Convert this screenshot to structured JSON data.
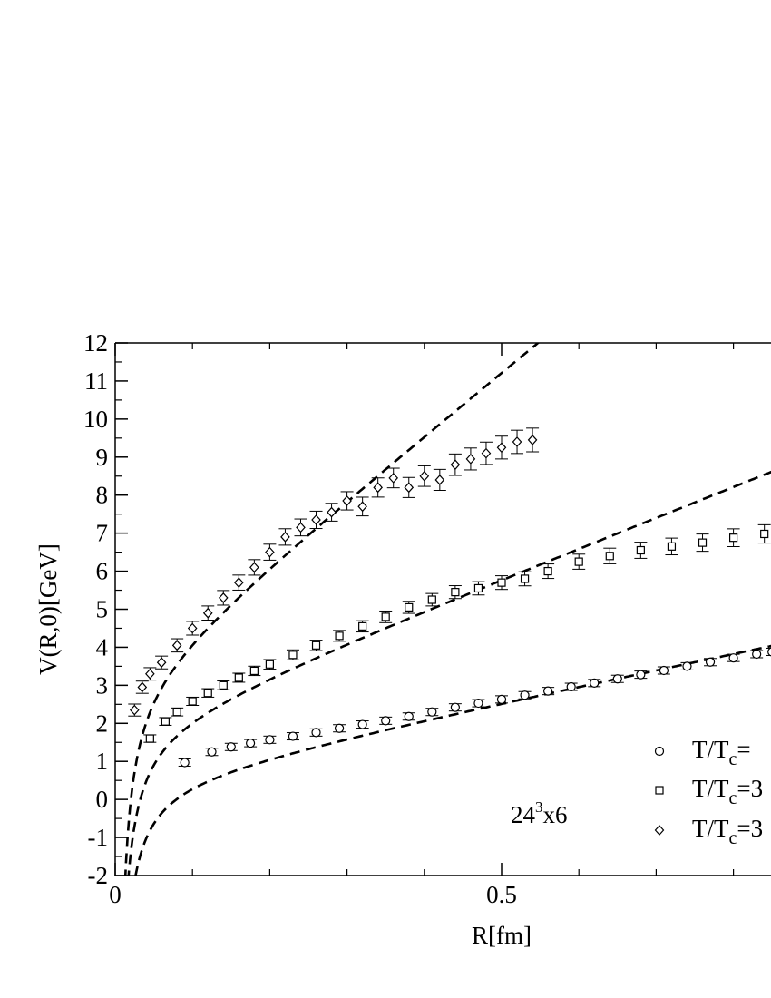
{
  "chart_data": {
    "type": "scatter",
    "title": "",
    "xlabel": "R[fm]",
    "ylabel": "V(R,0)[GeV]",
    "xlim": [
      0,
      0.86
    ],
    "ylim": [
      -2,
      12
    ],
    "xticks": [
      0,
      0.5
    ],
    "xtick_labels": [
      "0",
      "0.5"
    ],
    "yticks": [
      -2,
      -1,
      0,
      1,
      2,
      3,
      4,
      5,
      6,
      7,
      8,
      9,
      10,
      11,
      12
    ],
    "ytick_labels": [
      "-2",
      "-1",
      "0",
      "1",
      "2",
      "3",
      "4",
      "5",
      "6",
      "7",
      "8",
      "9",
      "10",
      "11",
      "12"
    ],
    "annotation": {
      "base": "24",
      "sup": "3",
      "rest": "x6"
    },
    "legend_placement": "bottom-right",
    "grid": false,
    "series": [
      {
        "name": "T/T_c=",
        "legend_main": "T/T",
        "legend_sub": "c",
        "legend_tail": "=",
        "marker": "circle",
        "points": [
          [
            0.09,
            0.97
          ],
          [
            0.125,
            1.25
          ],
          [
            0.15,
            1.38
          ],
          [
            0.175,
            1.48
          ],
          [
            0.2,
            1.57
          ],
          [
            0.23,
            1.66
          ],
          [
            0.26,
            1.76
          ],
          [
            0.29,
            1.87
          ],
          [
            0.32,
            1.97
          ],
          [
            0.35,
            2.07
          ],
          [
            0.38,
            2.18
          ],
          [
            0.41,
            2.3
          ],
          [
            0.44,
            2.42
          ],
          [
            0.47,
            2.53
          ],
          [
            0.5,
            2.63
          ],
          [
            0.53,
            2.74
          ],
          [
            0.56,
            2.85
          ],
          [
            0.59,
            2.96
          ],
          [
            0.62,
            3.06
          ],
          [
            0.65,
            3.17
          ],
          [
            0.68,
            3.28
          ],
          [
            0.71,
            3.39
          ],
          [
            0.74,
            3.5
          ],
          [
            0.77,
            3.61
          ],
          [
            0.8,
            3.72
          ],
          [
            0.83,
            3.82
          ],
          [
            0.85,
            3.88
          ]
        ],
        "fit": {
          "a": 0.07,
          "b": 4.2,
          "c": 0.55
        }
      },
      {
        "name": "T/T_c=3",
        "legend_main": "T/T",
        "legend_sub": "c",
        "legend_tail": "=3",
        "marker": "square",
        "points": [
          [
            0.045,
            1.6
          ],
          [
            0.065,
            2.05
          ],
          [
            0.08,
            2.3
          ],
          [
            0.1,
            2.58
          ],
          [
            0.12,
            2.8
          ],
          [
            0.14,
            3.0
          ],
          [
            0.16,
            3.2
          ],
          [
            0.18,
            3.38
          ],
          [
            0.2,
            3.55
          ],
          [
            0.23,
            3.8
          ],
          [
            0.26,
            4.05
          ],
          [
            0.29,
            4.3
          ],
          [
            0.32,
            4.55
          ],
          [
            0.35,
            4.8
          ],
          [
            0.38,
            5.05
          ],
          [
            0.41,
            5.25
          ],
          [
            0.44,
            5.45
          ],
          [
            0.47,
            5.55
          ],
          [
            0.5,
            5.7
          ],
          [
            0.53,
            5.8
          ],
          [
            0.56,
            6.0
          ],
          [
            0.6,
            6.25
          ],
          [
            0.64,
            6.4
          ],
          [
            0.68,
            6.55
          ],
          [
            0.72,
            6.65
          ],
          [
            0.76,
            6.75
          ],
          [
            0.8,
            6.88
          ],
          [
            0.84,
            6.98
          ]
        ],
        "fit": {
          "a": 0.07,
          "b": 8.0,
          "c": 1.9
        }
      },
      {
        "name": "T/T_c=3",
        "legend_main": "T/T",
        "legend_sub": "c",
        "legend_tail": "=3",
        "marker": "diamond",
        "points": [
          [
            0.025,
            2.35
          ],
          [
            0.035,
            2.95
          ],
          [
            0.045,
            3.3
          ],
          [
            0.06,
            3.6
          ],
          [
            0.08,
            4.05
          ],
          [
            0.1,
            4.5
          ],
          [
            0.12,
            4.9
          ],
          [
            0.14,
            5.3
          ],
          [
            0.16,
            5.7
          ],
          [
            0.18,
            6.1
          ],
          [
            0.2,
            6.5
          ],
          [
            0.22,
            6.9
          ],
          [
            0.24,
            7.15
          ],
          [
            0.26,
            7.35
          ],
          [
            0.28,
            7.55
          ],
          [
            0.3,
            7.85
          ],
          [
            0.32,
            7.7
          ],
          [
            0.34,
            8.2
          ],
          [
            0.36,
            8.45
          ],
          [
            0.38,
            8.2
          ],
          [
            0.4,
            8.5
          ],
          [
            0.42,
            8.4
          ],
          [
            0.44,
            8.8
          ],
          [
            0.46,
            8.95
          ],
          [
            0.48,
            9.1
          ],
          [
            0.5,
            9.25
          ],
          [
            0.52,
            9.4
          ],
          [
            0.54,
            9.45
          ]
        ],
        "fit": {
          "a": 0.07,
          "b": 16.5,
          "c": 3.1
        }
      }
    ]
  }
}
